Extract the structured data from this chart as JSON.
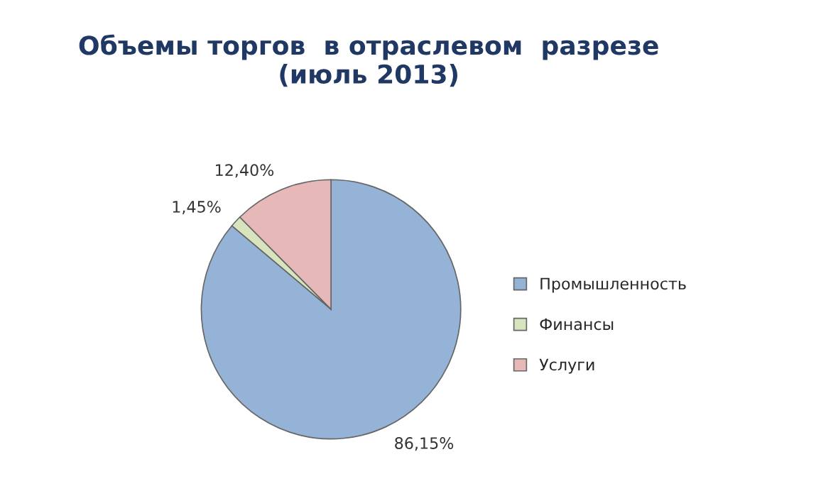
{
  "chart_data": {
    "type": "pie",
    "title": "Объемы торгов  в отраслевом  разрезе\n(июль 2013)",
    "categories": [
      "Промышленность",
      "Финансы",
      "Услуги"
    ],
    "values": [
      86.15,
      1.45,
      12.4
    ],
    "colors": [
      "#95b3d7",
      "#d7e4bd",
      "#e6b9b8"
    ],
    "value_labels": [
      "86,15%",
      "1,45%",
      "12,40%"
    ],
    "legend": "right"
  }
}
